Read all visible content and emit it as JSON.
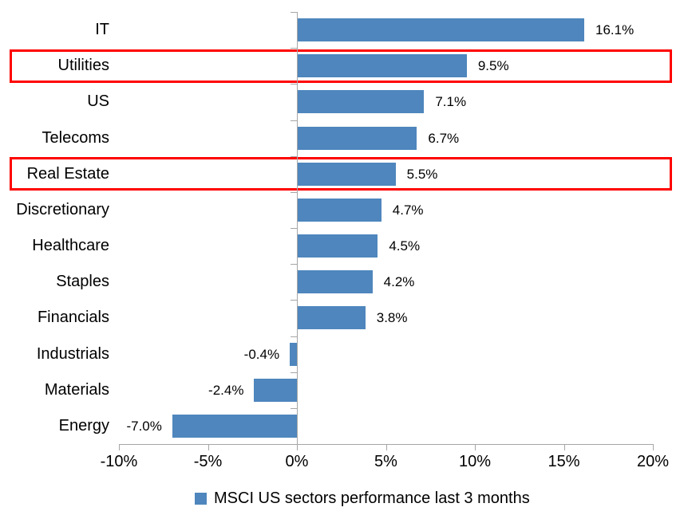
{
  "chart_data": {
    "type": "bar",
    "orientation": "horizontal",
    "title": "",
    "xlabel": "",
    "ylabel": "",
    "categories": [
      "IT",
      "Utilities",
      "US",
      "Telecoms",
      "Real Estate",
      "Discretionary",
      "Healthcare",
      "Staples",
      "Financials",
      "Industrials",
      "Materials",
      "Energy"
    ],
    "values": [
      16.1,
      9.5,
      7.1,
      6.7,
      5.5,
      4.7,
      4.5,
      4.2,
      3.8,
      -0.4,
      -2.4,
      -7.0
    ],
    "value_labels": [
      "16.1%",
      "9.5%",
      "7.1%",
      "6.7%",
      "5.5%",
      "4.7%",
      "4.5%",
      "4.2%",
      "3.8%",
      "-0.4%",
      "-2.4%",
      "-7.0%"
    ],
    "xlim": [
      -10,
      20
    ],
    "xticks": [
      {
        "value": -10,
        "label": "-10%"
      },
      {
        "value": -5,
        "label": "-5%"
      },
      {
        "value": 0,
        "label": "0%"
      },
      {
        "value": 5,
        "label": "5%"
      },
      {
        "value": 10,
        "label": "10%"
      },
      {
        "value": 15,
        "label": "15%"
      },
      {
        "value": 20,
        "label": "20%"
      }
    ],
    "grid": false,
    "legend_position": "bottom",
    "legend": "MSCI US sectors performance last 3 months",
    "highlighted_categories": [
      "Utilities",
      "Real Estate"
    ],
    "colors": {
      "bar": "#4e86bd",
      "highlight_box": "#ff0000",
      "axis": "#a6a6a6",
      "text": "#000000",
      "background": "#ffffff"
    }
  }
}
